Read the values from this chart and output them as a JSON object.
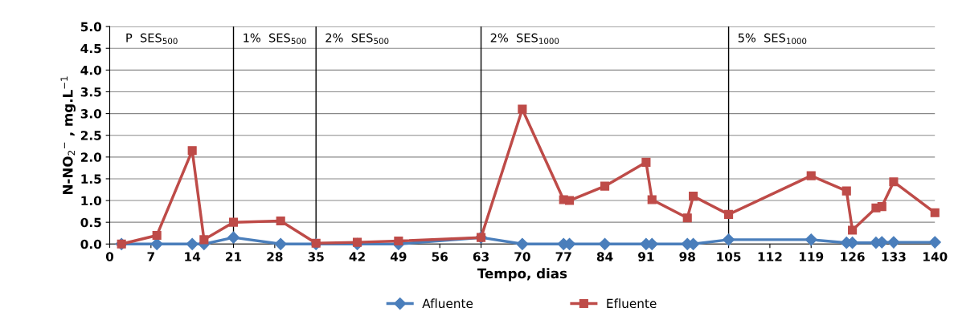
{
  "chart_data": {
    "type": "line",
    "xlabel": "Tempo, dias",
    "ylabel": "N-NO$_{2}$$^{−}$ , mg.L$^{−1}$",
    "xlim": [
      0,
      140
    ],
    "xticks": [
      0,
      7,
      14,
      21,
      28,
      35,
      42,
      49,
      56,
      63,
      70,
      77,
      84,
      91,
      98,
      105,
      112,
      119,
      126,
      133,
      140
    ],
    "ylim": [
      0,
      5
    ],
    "yticks": [
      {
        "value": 0,
        "label": "0.0"
      },
      {
        "value": 0.5,
        "label": "0.5"
      },
      {
        "value": 1,
        "label": "1.0"
      },
      {
        "value": 1.5,
        "label": "1.5"
      },
      {
        "value": 2,
        "label": "2.0"
      },
      {
        "value": 2.5,
        "label": "2.5"
      },
      {
        "value": 3,
        "label": "3.0"
      },
      {
        "value": 3.5,
        "label": "3.5"
      },
      {
        "value": 4,
        "label": "4.0"
      },
      {
        "value": 4.5,
        "label": "4.5"
      },
      {
        "value": 5,
        "label": "5.0"
      }
    ],
    "grid": "y",
    "legend": "bottom",
    "series": [
      {
        "name": "Afluente",
        "color": "#4a7ebb",
        "marker": "diamond",
        "x": [
          2,
          8,
          14,
          16,
          21,
          29,
          35,
          42,
          49,
          63,
          70,
          77,
          78,
          84,
          91,
          92,
          98,
          99,
          105,
          119,
          125,
          126,
          130,
          131,
          133,
          140
        ],
        "values": [
          0,
          0,
          0,
          0,
          0.15,
          0,
          0,
          0,
          0,
          0.15,
          0,
          0,
          0,
          0,
          0,
          0,
          0,
          0,
          0.1,
          0.1,
          0.03,
          0.03,
          0.03,
          0.04,
          0.04,
          0.04
        ]
      },
      {
        "name": "Efluente",
        "color": "#be4b48",
        "marker": "square",
        "x": [
          2,
          8,
          14,
          16,
          21,
          29,
          35,
          42,
          49,
          63,
          70,
          77,
          78,
          84,
          91,
          92,
          98,
          99,
          105,
          119,
          125,
          126,
          130,
          131,
          133,
          140
        ],
        "values": [
          0,
          0.2,
          2.15,
          0.1,
          0.5,
          0.53,
          0.02,
          0.04,
          0.07,
          0.15,
          3.1,
          1.02,
          1.0,
          1.33,
          1.88,
          1.02,
          0.6,
          1.1,
          0.68,
          1.57,
          1.22,
          0.32,
          0.83,
          0.86,
          1.43,
          0.72
        ]
      }
    ],
    "annotations": [
      "P  SES$_{500}$"
    ],
    "ref_lines": [
      {
        "axis": "x",
        "value": 21,
        "color": "#000000",
        "label": "1%  SES$_{500}$"
      },
      {
        "axis": "x",
        "value": 35,
        "color": "#000000",
        "label": "2%  SES$_{500}$"
      },
      {
        "axis": "x",
        "value": 63,
        "color": "#000000",
        "label": "2%  SES$_{1000}$"
      },
      {
        "axis": "x",
        "value": 105,
        "color": "#000000",
        "label": "5%  SES$_{1000}$"
      }
    ]
  }
}
